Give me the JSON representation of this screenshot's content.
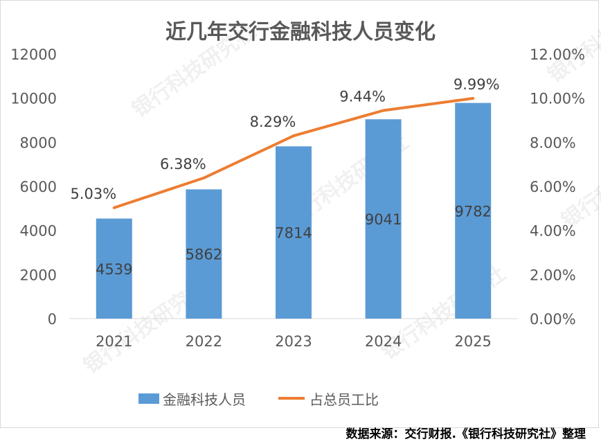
{
  "chart_data": {
    "type": "bar",
    "title": "近几年交行金融科技人员变化",
    "categories": [
      "2021",
      "2022",
      "2023",
      "2024",
      "2025"
    ],
    "series": [
      {
        "name": "金融科技人员",
        "kind": "bar",
        "axis": "left",
        "color": "#5b9bd5",
        "values": [
          4539,
          5862,
          7814,
          9041,
          9782
        ]
      },
      {
        "name": "占总员工比",
        "kind": "line",
        "axis": "right",
        "color": "#ed7d31",
        "values": [
          5.03,
          6.38,
          8.29,
          9.44,
          9.99
        ],
        "labels": [
          "5.03%",
          "6.38%",
          "8.29%",
          "9.44%",
          "9.99%"
        ]
      }
    ],
    "ylim_left": [
      0,
      12000
    ],
    "yticks_left": [
      "0",
      "2000",
      "4000",
      "6000",
      "8000",
      "10000",
      "12000"
    ],
    "ylim_right": [
      0,
      12
    ],
    "yticks_right": [
      "0.00%",
      "2.00%",
      "4.00%",
      "6.00%",
      "8.00%",
      "10.00%",
      "12.00%"
    ],
    "grid": false,
    "legend": "bottom"
  },
  "source": "数据来源：交行财报.《银行科技研究社》整理",
  "watermark": "银行科技研究社"
}
